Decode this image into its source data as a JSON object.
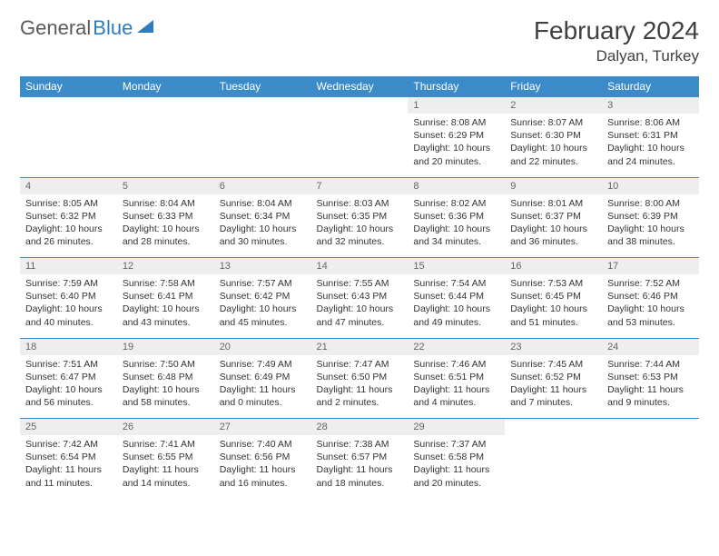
{
  "brand": {
    "part1": "General",
    "part2": "Blue"
  },
  "title": "February 2024",
  "location": "Dalyan, Turkey",
  "colors": {
    "header_bg": "#3b8bc8",
    "daynum_bg": "#eeeeee",
    "rule": "#3b8bc8",
    "text": "#333333",
    "brand_blue": "#2f7bbf"
  },
  "day_headers": [
    "Sunday",
    "Monday",
    "Tuesday",
    "Wednesday",
    "Thursday",
    "Friday",
    "Saturday"
  ],
  "weeks": [
    [
      null,
      null,
      null,
      null,
      {
        "n": "1",
        "sr": "8:08 AM",
        "ss": "6:29 PM",
        "dl": "10 hours and 20 minutes."
      },
      {
        "n": "2",
        "sr": "8:07 AM",
        "ss": "6:30 PM",
        "dl": "10 hours and 22 minutes."
      },
      {
        "n": "3",
        "sr": "8:06 AM",
        "ss": "6:31 PM",
        "dl": "10 hours and 24 minutes."
      }
    ],
    [
      {
        "n": "4",
        "sr": "8:05 AM",
        "ss": "6:32 PM",
        "dl": "10 hours and 26 minutes."
      },
      {
        "n": "5",
        "sr": "8:04 AM",
        "ss": "6:33 PM",
        "dl": "10 hours and 28 minutes."
      },
      {
        "n": "6",
        "sr": "8:04 AM",
        "ss": "6:34 PM",
        "dl": "10 hours and 30 minutes."
      },
      {
        "n": "7",
        "sr": "8:03 AM",
        "ss": "6:35 PM",
        "dl": "10 hours and 32 minutes."
      },
      {
        "n": "8",
        "sr": "8:02 AM",
        "ss": "6:36 PM",
        "dl": "10 hours and 34 minutes."
      },
      {
        "n": "9",
        "sr": "8:01 AM",
        "ss": "6:37 PM",
        "dl": "10 hours and 36 minutes."
      },
      {
        "n": "10",
        "sr": "8:00 AM",
        "ss": "6:39 PM",
        "dl": "10 hours and 38 minutes."
      }
    ],
    [
      {
        "n": "11",
        "sr": "7:59 AM",
        "ss": "6:40 PM",
        "dl": "10 hours and 40 minutes."
      },
      {
        "n": "12",
        "sr": "7:58 AM",
        "ss": "6:41 PM",
        "dl": "10 hours and 43 minutes."
      },
      {
        "n": "13",
        "sr": "7:57 AM",
        "ss": "6:42 PM",
        "dl": "10 hours and 45 minutes."
      },
      {
        "n": "14",
        "sr": "7:55 AM",
        "ss": "6:43 PM",
        "dl": "10 hours and 47 minutes."
      },
      {
        "n": "15",
        "sr": "7:54 AM",
        "ss": "6:44 PM",
        "dl": "10 hours and 49 minutes."
      },
      {
        "n": "16",
        "sr": "7:53 AM",
        "ss": "6:45 PM",
        "dl": "10 hours and 51 minutes."
      },
      {
        "n": "17",
        "sr": "7:52 AM",
        "ss": "6:46 PM",
        "dl": "10 hours and 53 minutes."
      }
    ],
    [
      {
        "n": "18",
        "sr": "7:51 AM",
        "ss": "6:47 PM",
        "dl": "10 hours and 56 minutes."
      },
      {
        "n": "19",
        "sr": "7:50 AM",
        "ss": "6:48 PM",
        "dl": "10 hours and 58 minutes."
      },
      {
        "n": "20",
        "sr": "7:49 AM",
        "ss": "6:49 PM",
        "dl": "11 hours and 0 minutes."
      },
      {
        "n": "21",
        "sr": "7:47 AM",
        "ss": "6:50 PM",
        "dl": "11 hours and 2 minutes."
      },
      {
        "n": "22",
        "sr": "7:46 AM",
        "ss": "6:51 PM",
        "dl": "11 hours and 4 minutes."
      },
      {
        "n": "23",
        "sr": "7:45 AM",
        "ss": "6:52 PM",
        "dl": "11 hours and 7 minutes."
      },
      {
        "n": "24",
        "sr": "7:44 AM",
        "ss": "6:53 PM",
        "dl": "11 hours and 9 minutes."
      }
    ],
    [
      {
        "n": "25",
        "sr": "7:42 AM",
        "ss": "6:54 PM",
        "dl": "11 hours and 11 minutes."
      },
      {
        "n": "26",
        "sr": "7:41 AM",
        "ss": "6:55 PM",
        "dl": "11 hours and 14 minutes."
      },
      {
        "n": "27",
        "sr": "7:40 AM",
        "ss": "6:56 PM",
        "dl": "11 hours and 16 minutes."
      },
      {
        "n": "28",
        "sr": "7:38 AM",
        "ss": "6:57 PM",
        "dl": "11 hours and 18 minutes."
      },
      {
        "n": "29",
        "sr": "7:37 AM",
        "ss": "6:58 PM",
        "dl": "11 hours and 20 minutes."
      },
      null,
      null
    ]
  ],
  "labels": {
    "sunrise": "Sunrise: ",
    "sunset": "Sunset: ",
    "daylight": "Daylight: "
  }
}
